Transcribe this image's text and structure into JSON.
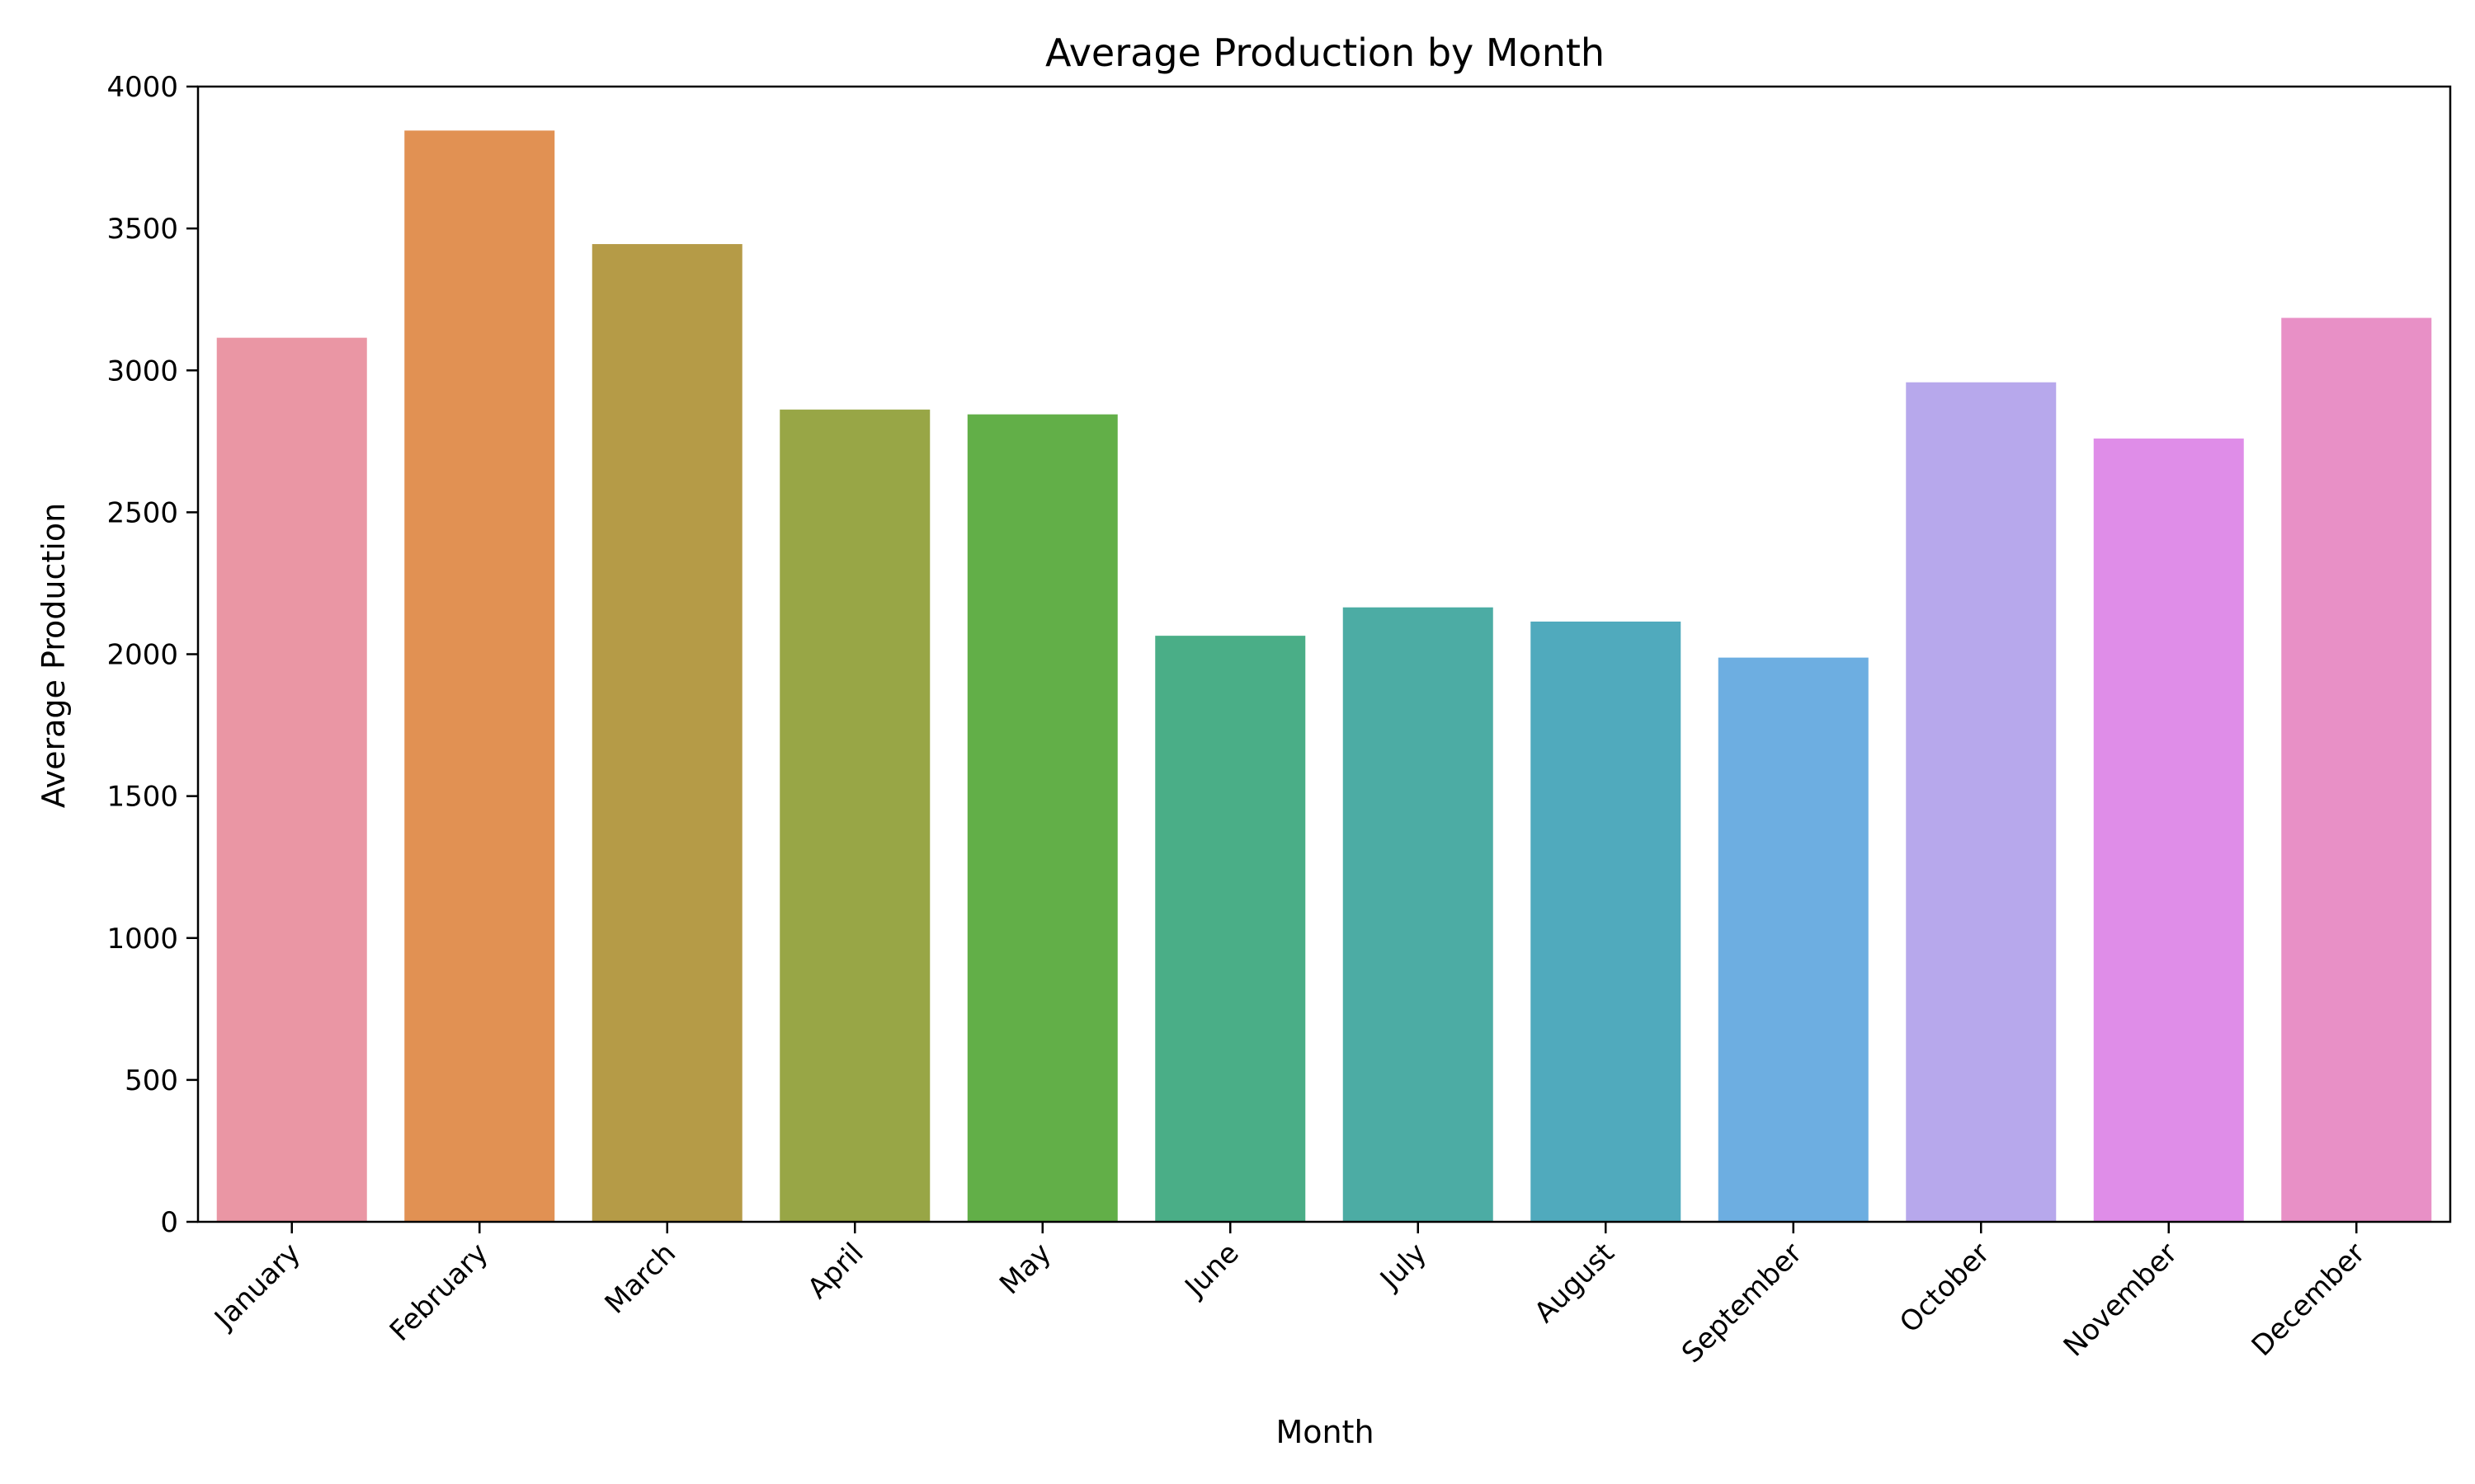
{
  "chart_data": {
    "type": "bar",
    "title": "Average Production by Month",
    "xlabel": "Month",
    "ylabel": "Average Production",
    "ylim": [
      0,
      4000
    ],
    "yticks": [
      0,
      500,
      1000,
      1500,
      2000,
      2500,
      3000,
      3500,
      4000
    ],
    "grid": false,
    "legend": "none",
    "categories": [
      "January",
      "February",
      "March",
      "April",
      "May",
      "June",
      "July",
      "August",
      "September",
      "October",
      "November",
      "December"
    ],
    "values": [
      3115,
      3845,
      3445,
      2862,
      2845,
      2065,
      2165,
      2115,
      1988,
      2958,
      2760,
      3185
    ],
    "colors": [
      "#ea96a4",
      "#e19153",
      "#b59b47",
      "#98a646",
      "#62af48",
      "#4aae87",
      "#4caca4",
      "#50aabd",
      "#6daee1",
      "#b7a8ec",
      "#df8de8",
      "#e890c6"
    ]
  }
}
